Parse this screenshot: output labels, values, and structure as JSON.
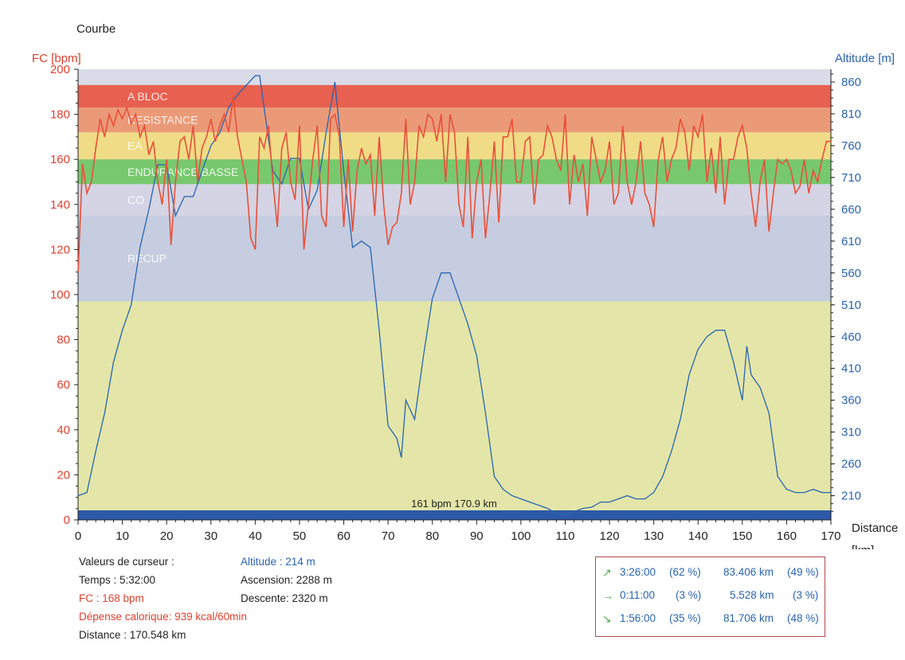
{
  "window": {
    "title": "Courbe"
  },
  "chart_data": {
    "type": "line",
    "x_label": "Distance",
    "x_unit": "[km]",
    "x_range": [
      0,
      170
    ],
    "x_ticks": [
      0,
      10,
      20,
      30,
      40,
      50,
      60,
      70,
      80,
      90,
      100,
      110,
      120,
      130,
      140,
      150,
      160,
      170
    ],
    "y_left": {
      "label": "FC [bpm]",
      "range": [
        0,
        200
      ],
      "ticks": [
        0,
        20,
        40,
        60,
        80,
        100,
        120,
        140,
        160,
        180,
        200
      ],
      "color": "#e0412f"
    },
    "y_right": {
      "label": "Altitude  [m]",
      "range": [
        172,
        880
      ],
      "ticks": [
        210,
        260,
        310,
        360,
        410,
        460,
        510,
        560,
        610,
        660,
        710,
        760,
        810,
        860
      ],
      "color": "#2a64b0"
    },
    "zones": [
      {
        "label": "A BLOC",
        "from": 183,
        "to": 193,
        "color": "#e8604f"
      },
      {
        "label": "RESISTANCE",
        "from": 172,
        "to": 183,
        "color": "#eb9a78"
      },
      {
        "label": "EA",
        "from": 160,
        "to": 172,
        "color": "#f0dc86"
      },
      {
        "label": "ENDURANCE BASSE",
        "from": 149,
        "to": 160,
        "color": "#78c86e"
      },
      {
        "label": "CO",
        "from": 135,
        "to": 149,
        "color": "#d4d4e4"
      },
      {
        "label": "RECUP",
        "from": 97,
        "to": 135,
        "color": "#c6cde0"
      }
    ],
    "series": [
      {
        "name": "FC",
        "color": "#e8503a",
        "x": [
          0,
          1,
          2,
          3,
          4,
          5,
          6,
          7,
          8,
          9,
          10,
          11,
          12,
          13,
          14,
          15,
          16,
          17,
          18,
          19,
          20,
          21,
          22,
          23,
          24,
          25,
          26,
          27,
          28,
          29,
          30,
          31,
          32,
          33,
          34,
          35,
          36,
          37,
          38,
          39,
          40,
          41,
          42,
          43,
          44,
          45,
          46,
          47,
          48,
          49,
          50,
          51,
          52,
          53,
          54,
          55,
          56,
          57,
          58,
          59,
          60,
          61,
          62,
          63,
          64,
          65,
          66,
          67,
          68,
          69,
          70,
          71,
          72,
          73,
          74,
          75,
          76,
          77,
          78,
          79,
          80,
          81,
          82,
          83,
          84,
          85,
          86,
          87,
          88,
          89,
          90,
          91,
          92,
          93,
          94,
          95,
          96,
          97,
          98,
          99,
          100,
          101,
          102,
          103,
          104,
          105,
          106,
          107,
          108,
          109,
          110,
          111,
          112,
          113,
          114,
          115,
          116,
          117,
          118,
          119,
          120,
          121,
          122,
          123,
          124,
          125,
          126,
          127,
          128,
          129,
          130,
          131,
          132,
          133,
          134,
          135,
          136,
          137,
          138,
          139,
          140,
          141,
          142,
          143,
          144,
          145,
          146,
          147,
          148,
          149,
          150,
          151,
          152,
          153,
          154,
          155,
          156,
          157,
          158,
          159,
          160,
          161,
          162,
          163,
          164,
          165,
          166,
          167,
          168,
          169,
          170
        ],
        "values": [
          110,
          158,
          145,
          150,
          165,
          178,
          170,
          180,
          175,
          182,
          178,
          183,
          176,
          180,
          170,
          175,
          162,
          168,
          150,
          140,
          160,
          122,
          150,
          168,
          170,
          160,
          175,
          150,
          165,
          170,
          178,
          168,
          175,
          180,
          172,
          188,
          170,
          160,
          150,
          125,
          120,
          170,
          165,
          175,
          150,
          130,
          165,
          172,
          150,
          142,
          175,
          120,
          140,
          160,
          175,
          135,
          130,
          178,
          180,
          170,
          130,
          160,
          128,
          155,
          165,
          158,
          162,
          135,
          170,
          140,
          122,
          130,
          132,
          145,
          178,
          140,
          150,
          175,
          170,
          180,
          178,
          168,
          180,
          150,
          180,
          172,
          140,
          130,
          170,
          125,
          150,
          160,
          125,
          145,
          168,
          132,
          170,
          170,
          178,
          150,
          150,
          168,
          170,
          140,
          160,
          162,
          175,
          170,
          160,
          155,
          180,
          140,
          162,
          150,
          158,
          135,
          170,
          160,
          150,
          155,
          168,
          140,
          145,
          175,
          150,
          140,
          150,
          168,
          145,
          140,
          130,
          160,
          170,
          150,
          160,
          165,
          178,
          172,
          155,
          175,
          170,
          180,
          150,
          165,
          145,
          170,
          140,
          160,
          160,
          170,
          175,
          165,
          145,
          130,
          150,
          160,
          128,
          145,
          160,
          158,
          160,
          155,
          145,
          148,
          160,
          145,
          155,
          150,
          160,
          168,
          168
        ]
      },
      {
        "name": "Altitude",
        "color": "#2a64b0",
        "x": [
          0,
          2,
          4,
          6,
          8,
          10,
          12,
          14,
          16,
          18,
          20,
          22,
          24,
          26,
          28,
          30,
          32,
          34,
          36,
          38,
          40,
          41,
          42,
          44,
          46,
          48,
          50,
          52,
          54,
          56,
          58,
          60,
          62,
          64,
          66,
          68,
          70,
          72,
          73,
          74,
          76,
          78,
          80,
          82,
          84,
          86,
          88,
          90,
          92,
          94,
          96,
          98,
          100,
          102,
          104,
          106,
          108,
          110,
          112,
          114,
          116,
          118,
          120,
          122,
          124,
          126,
          128,
          130,
          132,
          134,
          136,
          138,
          140,
          142,
          144,
          146,
          148,
          150,
          151,
          152,
          154,
          156,
          158,
          160,
          162,
          164,
          166,
          168,
          170
        ],
        "values": [
          210,
          215,
          280,
          340,
          420,
          470,
          510,
          600,
          660,
          730,
          730,
          650,
          680,
          680,
          720,
          760,
          780,
          820,
          840,
          855,
          870,
          870,
          820,
          720,
          700,
          740,
          740,
          660,
          690,
          780,
          860,
          720,
          600,
          610,
          600,
          470,
          320,
          300,
          270,
          360,
          330,
          430,
          520,
          560,
          560,
          520,
          480,
          430,
          340,
          240,
          220,
          210,
          205,
          200,
          195,
          190,
          182,
          180,
          185,
          190,
          192,
          200,
          200,
          205,
          210,
          205,
          205,
          215,
          240,
          280,
          330,
          400,
          440,
          460,
          470,
          470,
          420,
          360,
          445,
          400,
          380,
          340,
          240,
          220,
          215,
          215,
          220,
          215,
          215
        ]
      }
    ],
    "cursor_label": "161 bpm 170.9 km"
  },
  "cursor_info": {
    "title": "Valeurs de curseur :",
    "temps": "Temps : 5:32:00",
    "fc": "FC : 168 bpm",
    "depense": "Dépense calorique: 939 kcal/60min",
    "distance": "Distance : 170.548 km"
  },
  "altitude_info": {
    "altitude": "Altitude : 214 m",
    "ascension": "Ascension: 2288 m",
    "descente": "Descente: 2320 m"
  },
  "stats": {
    "rows": [
      {
        "icon": "arrow-up-icon",
        "glyph": "↗",
        "time": "3:26:00",
        "pct_time": "(62 %)",
        "dist": "83.406 km",
        "pct_dist": "(49 %)"
      },
      {
        "icon": "arrow-flat-icon",
        "glyph": "→",
        "time": "0:11:00",
        "pct_time": "(3 %)",
        "dist": "5.528 km",
        "pct_dist": "(3 %)"
      },
      {
        "icon": "arrow-down-icon",
        "glyph": "↘",
        "time": "1:56:00",
        "pct_time": "(35 %)",
        "dist": "81.706 km",
        "pct_dist": "(48 %)"
      }
    ]
  }
}
